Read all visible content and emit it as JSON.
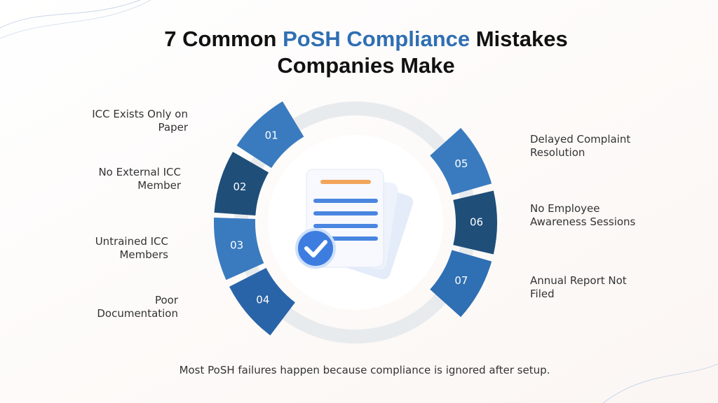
{
  "title": {
    "prefix": "7 Common",
    "highlight": "PoSH Compliance",
    "suffix": "Mistakes",
    "line2": "Companies Make"
  },
  "items": [
    {
      "number": "01",
      "label": [
        "ICC Exists Only on",
        "Paper"
      ]
    },
    {
      "number": "02",
      "label": [
        "No External ICC",
        "Member"
      ]
    },
    {
      "number": "03",
      "label": [
        "Untrained ICC",
        "Members"
      ]
    },
    {
      "number": "04",
      "label": [
        "Poor",
        "Documentation"
      ]
    },
    {
      "number": "05",
      "label": [
        "Delayed Complaint",
        "Resolution"
      ]
    },
    {
      "number": "06",
      "label": [
        "No Employee",
        "Awareness Sessions"
      ]
    },
    {
      "number": "07",
      "label": [
        "Annual Report Not",
        "Filed"
      ]
    }
  ],
  "footer": "Most PoSH failures happen because compliance is ignored after setup."
}
